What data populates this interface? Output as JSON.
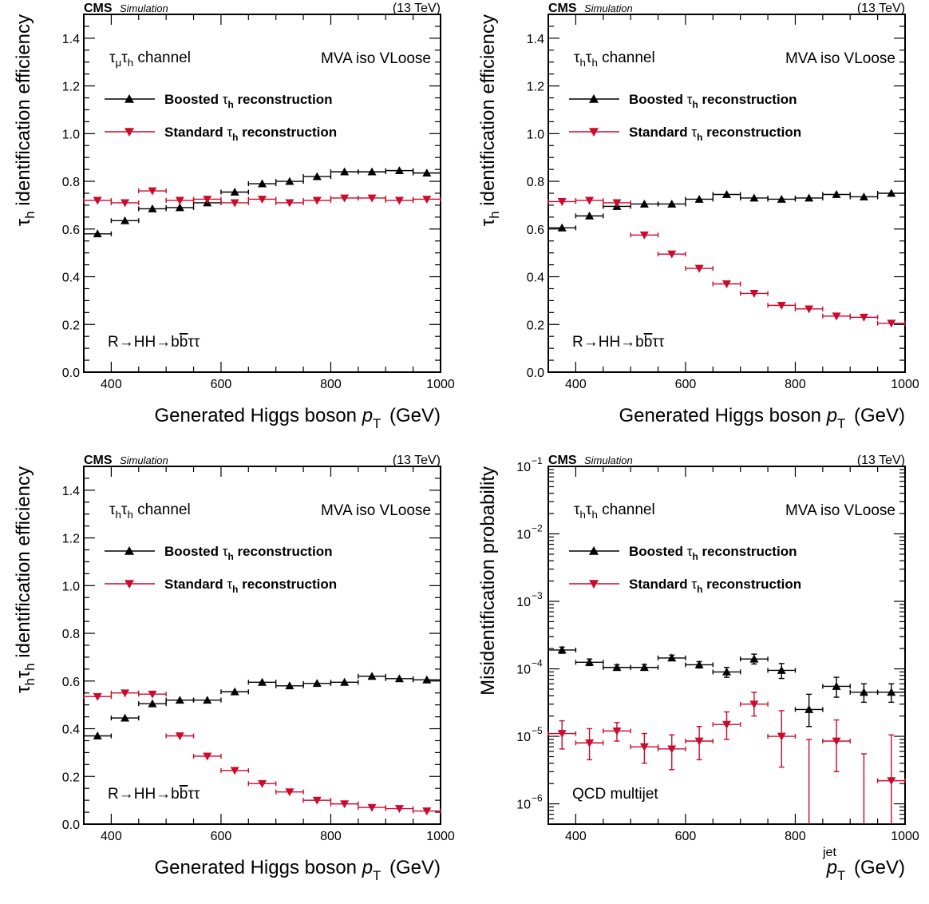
{
  "colors": {
    "boosted": "#000000",
    "standard": "#cc0a2b",
    "frame": "#000000",
    "background": "#ffffff"
  },
  "chart_data": [
    {
      "type": "scatter",
      "header": {
        "experiment": "CMS",
        "status": "Simulation",
        "energy": "(13 TeV)"
      },
      "ylabel": [
        "",
        "τ",
        "h",
        " identification efficiency"
      ],
      "xlabel": [
        "Generated Higgs boson ",
        "p",
        "T",
        " (GeV)"
      ],
      "channel": [
        "τ",
        "μ",
        "τ",
        "h",
        " channel"
      ],
      "isolation": "MVA iso VLoose",
      "process": [
        "R→HH→b",
        "b",
        "ττ"
      ],
      "xlim": [
        350,
        1000
      ],
      "ylim": [
        0,
        1.5
      ],
      "yscale": "linear",
      "xticks": [
        400,
        600,
        800,
        1000
      ],
      "yticks": [
        0.0,
        0.2,
        0.4,
        0.6,
        0.8,
        1.0,
        1.2,
        1.4
      ],
      "ytick_labels": [
        "0.0",
        "0.2",
        "0.4",
        "0.6",
        "0.8",
        "1.0",
        "1.2",
        "1.4"
      ],
      "bin_width": 50,
      "x": [
        375,
        425,
        475,
        525,
        575,
        625,
        675,
        725,
        775,
        825,
        875,
        925,
        975
      ],
      "series": [
        {
          "name": [
            "Boosted ",
            "τ",
            "h",
            " reconstruction"
          ],
          "marker": "triangle-up",
          "color": "#000000",
          "values": [
            0.58,
            0.635,
            0.685,
            0.69,
            0.71,
            0.755,
            0.79,
            0.8,
            0.82,
            0.84,
            0.84,
            0.845,
            0.835
          ]
        },
        {
          "name": [
            "Standard ",
            "τ",
            "h",
            " reconstruction"
          ],
          "marker": "triangle-down",
          "color": "#cc0a2b",
          "values": [
            0.72,
            0.71,
            0.76,
            0.72,
            0.725,
            0.71,
            0.725,
            0.71,
            0.72,
            0.73,
            0.73,
            0.72,
            0.725
          ]
        }
      ]
    },
    {
      "type": "scatter",
      "header": {
        "experiment": "CMS",
        "status": "Simulation",
        "energy": "(13 TeV)"
      },
      "ylabel": [
        "",
        "τ",
        "h",
        " identification efficiency"
      ],
      "xlabel": [
        "Generated Higgs boson ",
        "p",
        "T",
        " (GeV)"
      ],
      "channel": [
        "τ",
        "h",
        "τ",
        "h",
        " channel"
      ],
      "isolation": "MVA iso VLoose",
      "process": [
        "R→HH→b",
        "b",
        "ττ"
      ],
      "xlim": [
        350,
        1000
      ],
      "ylim": [
        0,
        1.5
      ],
      "yscale": "linear",
      "xticks": [
        400,
        600,
        800,
        1000
      ],
      "yticks": [
        0.0,
        0.2,
        0.4,
        0.6,
        0.8,
        1.0,
        1.2,
        1.4
      ],
      "ytick_labels": [
        "0.0",
        "0.2",
        "0.4",
        "0.6",
        "0.8",
        "1.0",
        "1.2",
        "1.4"
      ],
      "bin_width": 50,
      "x": [
        375,
        425,
        475,
        525,
        575,
        625,
        675,
        725,
        775,
        825,
        875,
        925,
        975
      ],
      "series": [
        {
          "name": [
            "Boosted ",
            "τ",
            "h",
            " reconstruction"
          ],
          "marker": "triangle-up",
          "color": "#000000",
          "values": [
            0.605,
            0.655,
            0.695,
            0.705,
            0.705,
            0.725,
            0.745,
            0.73,
            0.725,
            0.73,
            0.745,
            0.735,
            0.75
          ]
        },
        {
          "name": [
            "Standard ",
            "τ",
            "h",
            " reconstruction"
          ],
          "marker": "triangle-down",
          "color": "#cc0a2b",
          "x": [
            375,
            425,
            475,
            525,
            575,
            625,
            675,
            725,
            775,
            825,
            875,
            925,
            975
          ],
          "values": [
            0.715,
            0.72,
            0.71,
            0.575,
            0.495,
            0.435,
            0.37,
            0.33,
            0.28,
            0.265,
            0.235,
            0.23,
            0.205
          ]
        }
      ]
    },
    {
      "type": "scatter",
      "header": {
        "experiment": "CMS",
        "status": "Simulation",
        "energy": "(13 TeV)"
      },
      "ylabel": [
        "",
        "τ",
        "h",
        "τ",
        "h",
        " identification efficiency"
      ],
      "xlabel": [
        "Generated Higgs boson ",
        "p",
        "T",
        " (GeV)"
      ],
      "channel": [
        "τ",
        "h",
        "τ",
        "h",
        " channel"
      ],
      "isolation": "MVA iso VLoose",
      "process": [
        "R→HH→b",
        "b",
        "ττ"
      ],
      "xlim": [
        350,
        1000
      ],
      "ylim": [
        0,
        1.5
      ],
      "yscale": "linear",
      "xticks": [
        400,
        600,
        800,
        1000
      ],
      "yticks": [
        0.0,
        0.2,
        0.4,
        0.6,
        0.8,
        1.0,
        1.2,
        1.4
      ],
      "ytick_labels": [
        "0.0",
        "0.2",
        "0.4",
        "0.6",
        "0.8",
        "1.0",
        "1.2",
        "1.4"
      ],
      "bin_width": 50,
      "x": [
        375,
        425,
        475,
        525,
        575,
        625,
        675,
        725,
        775,
        825,
        875,
        925,
        975
      ],
      "series": [
        {
          "name": [
            "Boosted ",
            "τ",
            "h",
            " reconstruction"
          ],
          "marker": "triangle-up",
          "color": "#000000",
          "values": [
            0.37,
            0.445,
            0.505,
            0.52,
            0.52,
            0.555,
            0.595,
            0.58,
            0.59,
            0.595,
            0.62,
            0.61,
            0.605
          ]
        },
        {
          "name": [
            "Standard ",
            "τ",
            "h",
            " reconstruction"
          ],
          "marker": "triangle-down",
          "color": "#cc0a2b",
          "values": [
            0.535,
            0.55,
            0.545,
            0.37,
            0.285,
            0.225,
            0.17,
            0.135,
            0.1,
            0.085,
            0.07,
            0.065,
            0.055
          ]
        }
      ]
    },
    {
      "type": "scatter",
      "header": {
        "experiment": "CMS",
        "status": "Simulation",
        "energy": "(13 TeV)"
      },
      "ylabel": [
        "Misidentification probability"
      ],
      "xlabel": [
        "",
        "p",
        "T",
        " (GeV)"
      ],
      "xlabel_superscript": "jet",
      "channel": [
        "τ",
        "h",
        "τ",
        "h",
        " channel"
      ],
      "isolation": "MVA iso VLoose",
      "process": [
        "QCD multijet"
      ],
      "xlim": [
        350,
        1000
      ],
      "ylim": [
        5e-07,
        0.1
      ],
      "yscale": "log",
      "xticks": [
        400,
        600,
        800,
        1000
      ],
      "yticks": [
        1e-06,
        1e-05,
        0.0001,
        0.001,
        0.01,
        0.1
      ],
      "ytick_labels": [
        [
          "10",
          "−6"
        ],
        [
          "10",
          "−5"
        ],
        [
          "10",
          "−4"
        ],
        [
          "10",
          "−3"
        ],
        [
          "10",
          "−2"
        ],
        [
          "10",
          "−1"
        ]
      ],
      "bin_width": 50,
      "x": [
        375,
        425,
        475,
        525,
        575,
        625,
        675,
        725,
        775,
        825,
        875,
        925,
        975
      ],
      "series": [
        {
          "name": [
            "Boosted ",
            "τ",
            "h",
            " reconstruction"
          ],
          "marker": "triangle-up",
          "color": "#000000",
          "values": [
            0.00019,
            0.000125,
            0.000105,
            0.000105,
            0.000145,
            0.000115,
            9e-05,
            0.00014,
            9.5e-05,
            2.5e-05,
            5.5e-05,
            4.5e-05,
            4.5e-05
          ],
          "err_low": [
            0.00017,
            0.000112,
            9.5e-05,
            9.5e-05,
            0.000132,
            0.000103,
            7.5e-05,
            0.000118,
            7.2e-05,
            1.4e-05,
            3.8e-05,
            3.2e-05,
            3.2e-05
          ],
          "err_high": [
            0.00021,
            0.00014,
            0.000115,
            0.000116,
            0.00016,
            0.000128,
            0.000105,
            0.000165,
            0.00012,
            4.2e-05,
            7.5e-05,
            6e-05,
            6e-05
          ]
        },
        {
          "name": [
            "Standard ",
            "τ",
            "h",
            " reconstruction"
          ],
          "marker": "triangle-down",
          "color": "#cc0a2b",
          "values": [
            1.1e-05,
            8e-06,
            1.2e-05,
            7e-06,
            6.5e-06,
            8.5e-06,
            1.5e-05,
            3e-05,
            1e-05,
            null,
            8.5e-06,
            null,
            2.2e-06
          ],
          "err_low": [
            6.5e-06,
            4.5e-06,
            8.5e-06,
            4e-06,
            3.2e-06,
            4.5e-06,
            9e-06,
            2e-05,
            3.5e-06,
            5e-07,
            3e-06,
            5e-07,
            5e-07
          ],
          "err_high": [
            1.7e-05,
            1.3e-05,
            1.6e-05,
            1.1e-05,
            1.05e-05,
            1.4e-05,
            2.3e-05,
            4.5e-05,
            2.4e-05,
            9e-06,
            1.75e-05,
            5.5e-06,
            1.05e-05
          ]
        }
      ]
    }
  ]
}
